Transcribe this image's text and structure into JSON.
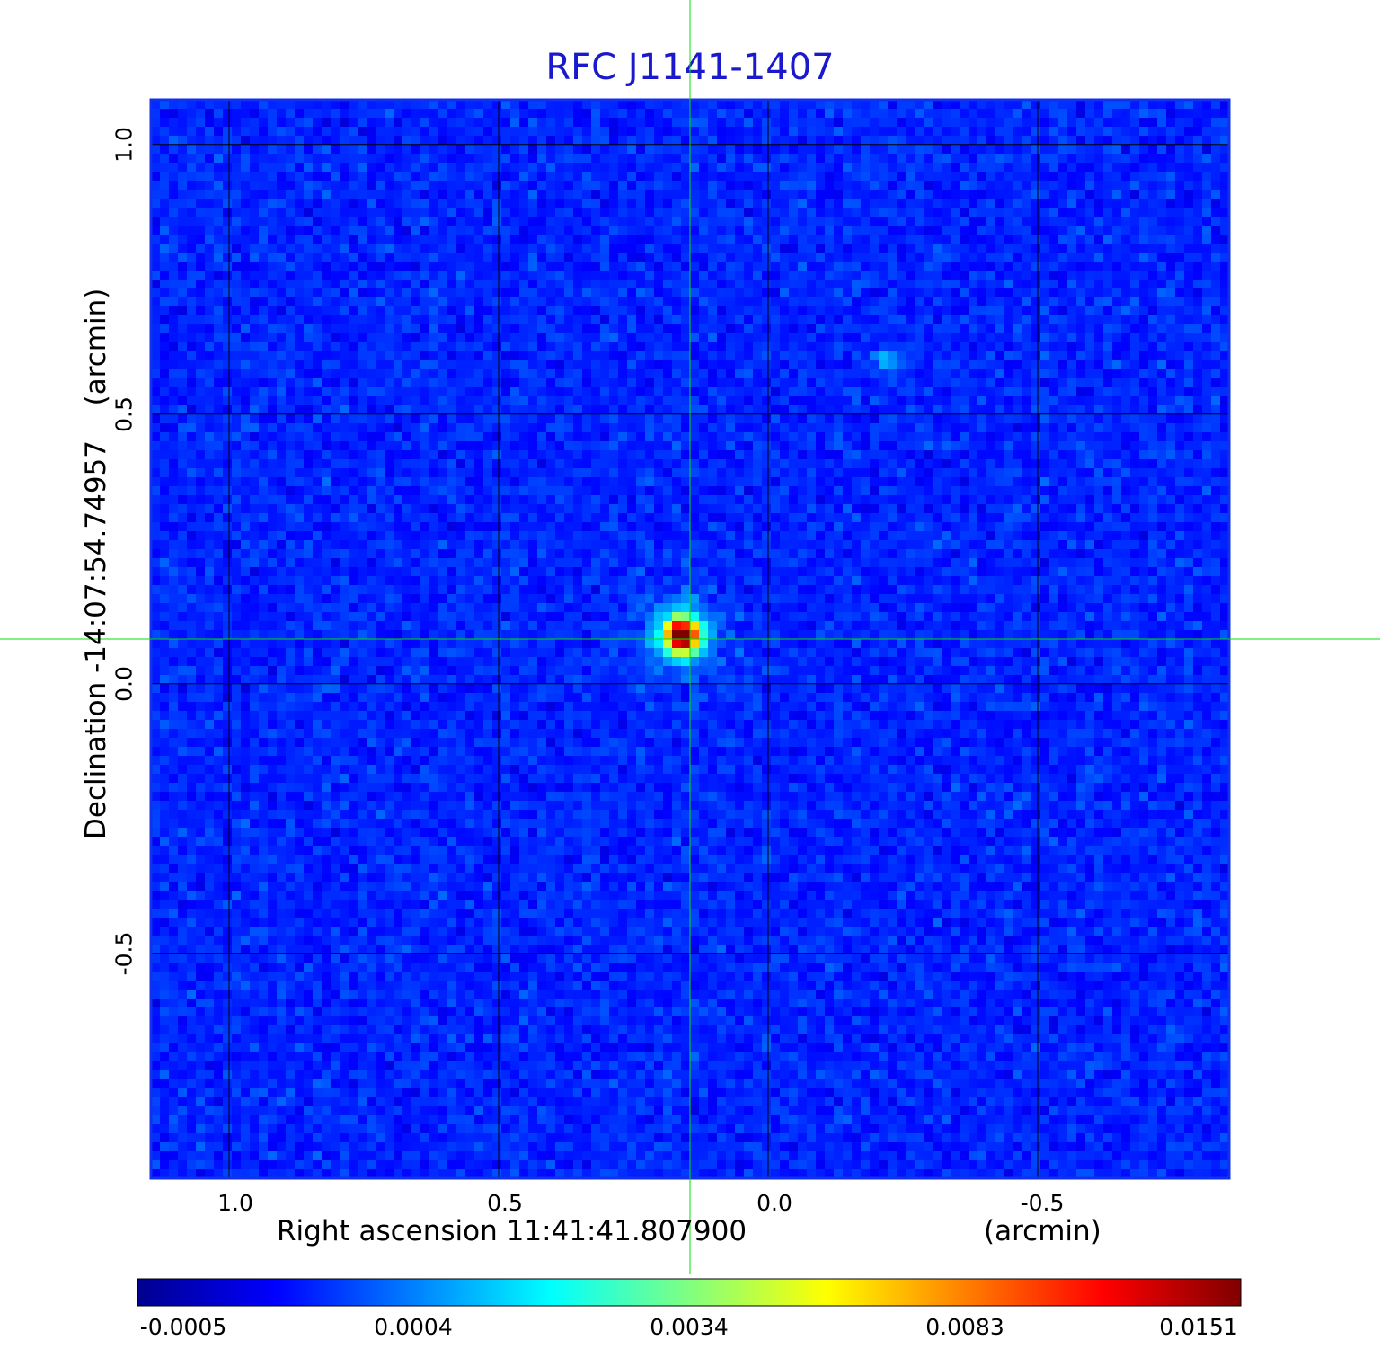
{
  "chart_data": {
    "type": "heatmap",
    "title": "RFC J1141-1407",
    "xlabel": "Right ascension  11:41:41.807900",
    "xunit": "(arcmin)",
    "ylabel": "Declination  -14:07:54.74957",
    "yunit": "(arcmin)",
    "xlim": [
      1.145,
      -0.855
    ],
    "ylim": [
      -0.917,
      1.083
    ],
    "x_ticks": [
      1.0,
      0.5,
      0.0,
      -0.5
    ],
    "x_tick_labels": [
      "1.0",
      "0.5",
      "0.0",
      "-0.5"
    ],
    "y_ticks": [
      1.0,
      0.5,
      0.0,
      -0.5
    ],
    "y_tick_labels": [
      "1.0",
      "0.5",
      "0.0",
      "-0.5"
    ],
    "grid": true,
    "colormap": "jet",
    "colorbar": {
      "placement": "bottom",
      "tick_labels": [
        "-0.0005",
        "0.0004",
        "0.0034",
        "0.0083",
        "0.0151"
      ]
    },
    "crosshair": {
      "x": 0.145,
      "y": 0.083,
      "color": "#00e000"
    },
    "sources": [
      {
        "x": 0.16,
        "y": 0.09,
        "peak": 0.0151
      },
      {
        "x": -0.22,
        "y": 0.6,
        "peak": 0.0008
      }
    ]
  }
}
